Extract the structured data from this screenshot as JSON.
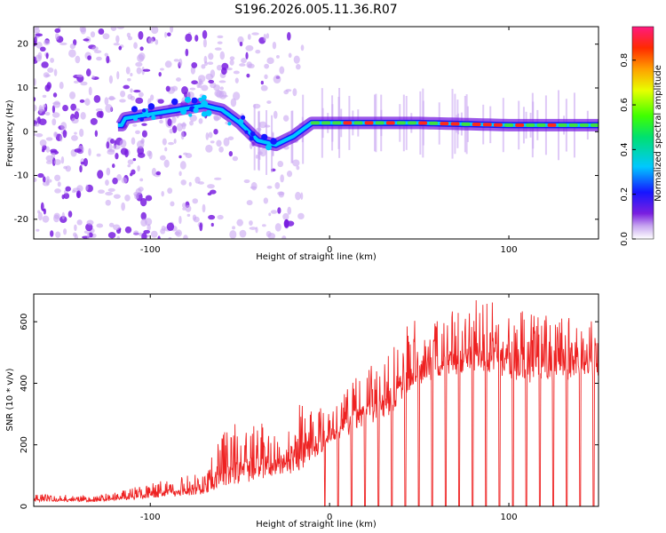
{
  "title": "S196.2026.005.11.36.R07",
  "colors": {
    "snr_line": "#ee2222",
    "spectrum_ridge": "#ff2a1a",
    "noise_purple": "#7a1fe0"
  },
  "chart_data": [
    {
      "type": "heatmap",
      "name": "spectrogram",
      "xlabel": "Height of straight line (km)",
      "ylabel": "Frequency (Hz)",
      "xlim": [
        -165,
        150
      ],
      "ylim": [
        -24.5,
        24
      ],
      "xticks": [
        -100,
        0,
        100
      ],
      "yticks": [
        -20,
        -10,
        0,
        10,
        20
      ],
      "ridge": [
        {
          "x": -115,
          "y": 3
        },
        {
          "x": -100,
          "y": 4
        },
        {
          "x": -85,
          "y": 5
        },
        {
          "x": -70,
          "y": 6
        },
        {
          "x": -60,
          "y": 5
        },
        {
          "x": -50,
          "y": 2
        },
        {
          "x": -40,
          "y": -2
        },
        {
          "x": -30,
          "y": -3
        },
        {
          "x": -20,
          "y": -1
        },
        {
          "x": -10,
          "y": 2
        },
        {
          "x": 0,
          "y": 2
        },
        {
          "x": 50,
          "y": 2
        },
        {
          "x": 100,
          "y": 1.5
        },
        {
          "x": 150,
          "y": 1.5
        }
      ],
      "colorbar": {
        "label": "Normalized spectral amplitude",
        "range": [
          0,
          0.95
        ],
        "ticks": [
          0.0,
          0.2,
          0.4,
          0.6,
          0.8
        ],
        "tick_labels": [
          "0.0",
          "0.2",
          "0.4",
          "0.6",
          "0.8"
        ]
      }
    },
    {
      "type": "line",
      "name": "snr",
      "xlabel": "Height of straight line (km)",
      "ylabel": "SNR (10 * v/v)",
      "xlim": [
        -165,
        150
      ],
      "ylim": [
        0,
        690
      ],
      "xticks": [
        -100,
        0,
        100
      ],
      "yticks": [
        0,
        200,
        400,
        600
      ],
      "envelope": [
        {
          "x": -165,
          "base": 15,
          "peak": 40
        },
        {
          "x": -130,
          "base": 15,
          "peak": 35
        },
        {
          "x": -110,
          "base": 20,
          "peak": 60
        },
        {
          "x": -90,
          "base": 30,
          "peak": 90
        },
        {
          "x": -70,
          "base": 40,
          "peak": 110
        },
        {
          "x": -60,
          "base": 60,
          "peak": 250
        },
        {
          "x": -45,
          "base": 80,
          "peak": 290
        },
        {
          "x": -30,
          "base": 80,
          "peak": 260
        },
        {
          "x": -15,
          "base": 120,
          "peak": 340
        },
        {
          "x": 0,
          "base": 200,
          "peak": 340
        },
        {
          "x": 20,
          "base": 260,
          "peak": 460
        },
        {
          "x": 35,
          "base": 300,
          "peak": 520
        },
        {
          "x": 45,
          "base": 380,
          "peak": 600
        },
        {
          "x": 60,
          "base": 420,
          "peak": 620
        },
        {
          "x": 85,
          "base": 440,
          "peak": 680
        },
        {
          "x": 110,
          "base": 400,
          "peak": 630
        },
        {
          "x": 150,
          "base": 420,
          "peak": 600
        }
      ],
      "dropout_start_x": -3,
      "dropout_spacing": 7.5
    }
  ]
}
